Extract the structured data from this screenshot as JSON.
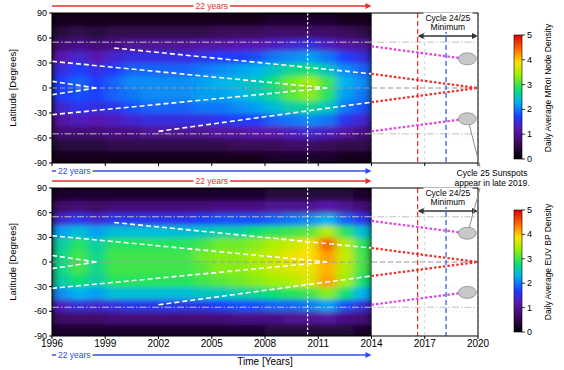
{
  "chart_data": [
    {
      "type": "heatmap",
      "y_label": "Latitude [Degrees]",
      "xlim": [
        1996,
        2020
      ],
      "xticks": [
        1996,
        1999,
        2002,
        2005,
        2008,
        2011,
        2014,
        2017,
        2020
      ],
      "ylim": [
        -90,
        90
      ],
      "yticks": [
        -90,
        -60,
        -30,
        0,
        30,
        60,
        90
      ],
      "tick_labels": "y",
      "grid": true,
      "x_edges": [
        1996,
        1997,
        1998,
        1999,
        2000,
        2001,
        2002,
        2003,
        2004,
        2005,
        2006,
        2007,
        2008,
        2009,
        2010,
        2011,
        2012,
        2013,
        2014
      ],
      "y_edges": [
        -90,
        -75,
        -60,
        -45,
        -30,
        -15,
        0,
        15,
        30,
        45,
        60,
        75,
        90
      ],
      "cells": [
        [
          0.2,
          0.2,
          0.2,
          0.2,
          0.2,
          0.2,
          0.2,
          0.2,
          0.2,
          0.2,
          0.2,
          0.2,
          0.3,
          0.3,
          0.3,
          0.3,
          0.2,
          0.2
        ],
        [
          0.4,
          0.4,
          0.4,
          0.5,
          0.5,
          0.5,
          0.5,
          0.5,
          0.5,
          0.5,
          0.6,
          0.6,
          0.6,
          0.7,
          0.7,
          0.6,
          0.5,
          0.5
        ],
        [
          0.8,
          0.8,
          0.8,
          0.9,
          0.9,
          1.0,
          1.0,
          1.0,
          1.0,
          1.1,
          1.1,
          1.2,
          1.2,
          1.3,
          1.4,
          1.3,
          1.1,
          0.9
        ],
        [
          1.1,
          1.3,
          1.2,
          1.3,
          1.4,
          1.5,
          1.5,
          1.5,
          1.5,
          1.6,
          1.7,
          1.7,
          1.9,
          2.0,
          2.1,
          2.0,
          1.6,
          1.4
        ],
        [
          1.4,
          1.6,
          1.5,
          1.6,
          1.8,
          1.9,
          1.9,
          1.9,
          2.0,
          2.0,
          2.1,
          2.2,
          2.4,
          2.6,
          2.7,
          2.5,
          2.0,
          1.8
        ],
        [
          1.7,
          1.8,
          1.7,
          1.9,
          2.0,
          2.1,
          2.1,
          2.1,
          2.2,
          2.2,
          2.3,
          2.5,
          2.7,
          3.1,
          3.3,
          2.9,
          2.2,
          2.0
        ],
        [
          1.7,
          1.9,
          1.7,
          1.9,
          2.1,
          2.1,
          2.1,
          2.1,
          2.2,
          2.3,
          2.4,
          2.5,
          2.8,
          3.2,
          3.4,
          3.0,
          2.3,
          2.1
        ],
        [
          1.5,
          1.7,
          1.5,
          1.7,
          1.9,
          1.9,
          1.9,
          1.9,
          2.0,
          2.1,
          2.2,
          2.3,
          2.5,
          2.7,
          2.8,
          2.5,
          2.1,
          1.9
        ],
        [
          1.2,
          1.4,
          1.2,
          1.4,
          1.5,
          1.5,
          1.5,
          1.5,
          1.6,
          1.7,
          1.7,
          1.8,
          2.0,
          2.1,
          2.2,
          2.0,
          1.7,
          1.5
        ],
        [
          0.8,
          0.9,
          0.8,
          0.9,
          1.0,
          1.0,
          1.0,
          1.0,
          1.1,
          1.1,
          1.2,
          1.2,
          1.3,
          1.4,
          1.5,
          1.3,
          1.1,
          1.0
        ],
        [
          0.4,
          0.5,
          0.4,
          0.5,
          0.5,
          0.5,
          0.5,
          0.5,
          0.5,
          0.6,
          0.6,
          0.6,
          0.7,
          0.7,
          0.7,
          0.7,
          0.6,
          0.5
        ],
        [
          0.2,
          0.2,
          0.2,
          0.2,
          0.2,
          0.2,
          0.2,
          0.2,
          0.2,
          0.2,
          0.2,
          0.2,
          0.3,
          0.3,
          0.3,
          0.3,
          0.2,
          0.2
        ]
      ],
      "colorbar_lim": [
        0,
        5
      ],
      "colorbar_ticks": [
        0,
        1,
        2,
        3,
        4,
        5
      ],
      "colorbar_label": "Daily Average MRoI Node Density",
      "series": [
        {
          "type": "line",
          "color": "#ffffff",
          "line_style": "dashed",
          "x": [
            1996,
            2011.5
          ],
          "values": [
            32,
            0
          ]
        },
        {
          "type": "line",
          "color": "#ffffff",
          "line_style": "dashed",
          "x": [
            1996,
            2011.5
          ],
          "values": [
            -32,
            0
          ]
        },
        {
          "type": "line",
          "color": "#ffffff",
          "line_style": "dashed",
          "x": [
            1999.5,
            2014
          ],
          "values": [
            48,
            17
          ]
        },
        {
          "type": "line",
          "color": "#ffffff",
          "line_style": "dashed",
          "x": [
            2002,
            2014
          ],
          "values": [
            -52,
            -17
          ]
        },
        {
          "type": "line",
          "color": "#ffffff",
          "line_style": "dashed",
          "x": [
            1996,
            1998.5
          ],
          "values": [
            8,
            0
          ]
        },
        {
          "type": "line",
          "color": "#ffffff",
          "line_style": "dashed",
          "x": [
            1996,
            1998.5
          ],
          "values": [
            -8,
            0
          ]
        },
        {
          "type": "line",
          "color": "#e8302a",
          "line_style": "dotted",
          "x": [
            2014,
            2020
          ],
          "values": [
            17,
            0
          ]
        },
        {
          "type": "line",
          "color": "#e8302a",
          "line_style": "dotted",
          "x": [
            2014,
            2020
          ],
          "values": [
            -17,
            0
          ]
        },
        {
          "type": "line",
          "color": "#e040e0",
          "line_style": "dotted",
          "x": [
            2014,
            2019.3
          ],
          "values": [
            50,
            35
          ]
        },
        {
          "type": "line",
          "color": "#e040e0",
          "line_style": "dotted",
          "x": [
            2014,
            2019.3
          ],
          "values": [
            -52,
            -37
          ]
        }
      ],
      "hlines": [
        {
          "y": 55,
          "color": "#c0c0c0",
          "line_style": "dashdot"
        },
        {
          "y": -55,
          "color": "#c0c0c0",
          "line_style": "dashdot"
        },
        {
          "y": 0,
          "color": "#9a9a9a",
          "line_style": "dashed"
        }
      ],
      "vlines": [
        {
          "x": 2010.4,
          "color": "#ffffff",
          "line_style": "dotted"
        },
        {
          "x": 2016.6,
          "color": "#e8302a",
          "line_style": "dashed"
        },
        {
          "x": 2018.2,
          "color": "#2f4fe8",
          "line_style": "dashed"
        }
      ],
      "ellipses": [
        {
          "x": 2019.4,
          "y": 35
        },
        {
          "x": 2019.4,
          "y": -37
        }
      ],
      "arrow_above": {
        "label": "22 years",
        "x": [
          1996,
          2014
        ],
        "color": "#e8302a"
      },
      "arrow_below": {
        "label": "22 years",
        "x": [
          1996,
          2014
        ],
        "color": "#2f4fe8"
      },
      "minimum_span": {
        "text": [
          "Cycle 24/25",
          "Minimum"
        ],
        "x": [
          2016.6,
          2020
        ]
      }
    },
    {
      "type": "heatmap",
      "y_label": "Latitude [Degrees]",
      "x_label": "Time [Years]",
      "xlim": [
        1996,
        2020
      ],
      "xticks": [
        1996,
        1999,
        2002,
        2005,
        2008,
        2011,
        2014,
        2017,
        2020
      ],
      "ylim": [
        -90,
        90
      ],
      "yticks": [
        -90,
        -60,
        -30,
        0,
        30,
        60,
        90
      ],
      "grid": true,
      "x_edges": [
        1996,
        1997,
        1998,
        1999,
        2000,
        2001,
        2002,
        2003,
        2004,
        2005,
        2006,
        2007,
        2008,
        2009,
        2010,
        2011,
        2012,
        2013,
        2014
      ],
      "y_edges": [
        -90,
        -75,
        -60,
        -45,
        -30,
        -15,
        0,
        15,
        30,
        45,
        60,
        75,
        90
      ],
      "cells": [
        [
          0.3,
          0.3,
          0.3,
          0.3,
          0.3,
          0.3,
          0.3,
          0.3,
          0.3,
          0.3,
          0.3,
          0.3,
          0.4,
          0.4,
          0.4,
          0.4,
          0.4,
          0.3
        ],
        [
          0.7,
          0.7,
          0.7,
          0.8,
          0.8,
          0.8,
          0.8,
          0.8,
          0.8,
          0.8,
          0.9,
          0.9,
          0.9,
          1.0,
          1.0,
          1.1,
          0.9,
          0.8
        ],
        [
          1.3,
          1.5,
          1.4,
          1.5,
          1.6,
          1.6,
          1.6,
          1.6,
          1.6,
          1.7,
          1.8,
          1.8,
          1.9,
          1.9,
          2.0,
          2.2,
          1.8,
          1.5
        ],
        [
          2.1,
          2.3,
          2.2,
          2.4,
          2.4,
          2.4,
          2.4,
          2.4,
          2.5,
          2.5,
          2.6,
          2.7,
          2.8,
          2.9,
          3.0,
          3.3,
          2.8,
          2.3
        ],
        [
          2.6,
          2.8,
          2.6,
          2.9,
          2.9,
          2.9,
          2.9,
          2.9,
          3.0,
          3.1,
          3.2,
          3.3,
          3.4,
          3.5,
          3.7,
          4.2,
          3.4,
          2.8
        ],
        [
          2.7,
          3.0,
          2.7,
          3.0,
          3.0,
          3.0,
          3.0,
          3.0,
          3.1,
          3.3,
          3.3,
          3.4,
          3.6,
          3.7,
          3.8,
          4.1,
          3.5,
          3.0
        ],
        [
          2.7,
          3.0,
          2.7,
          3.0,
          3.0,
          3.0,
          3.0,
          3.0,
          3.2,
          3.3,
          3.3,
          3.5,
          3.6,
          3.8,
          3.9,
          4.2,
          3.6,
          3.0
        ],
        [
          2.6,
          2.9,
          2.6,
          2.9,
          2.9,
          2.9,
          2.9,
          2.9,
          3.0,
          3.2,
          3.2,
          3.3,
          3.5,
          3.6,
          3.8,
          4.5,
          3.5,
          2.9
        ],
        [
          2.2,
          2.4,
          2.2,
          2.4,
          2.4,
          2.4,
          2.4,
          2.4,
          2.5,
          2.6,
          2.6,
          2.8,
          2.9,
          3.0,
          3.1,
          3.5,
          2.9,
          2.4
        ],
        [
          1.4,
          1.6,
          1.4,
          1.6,
          1.6,
          1.6,
          1.6,
          1.6,
          1.7,
          1.8,
          1.8,
          1.8,
          1.9,
          2.0,
          2.1,
          2.3,
          1.9,
          1.6
        ],
        [
          0.7,
          0.8,
          0.7,
          0.8,
          0.8,
          0.8,
          0.8,
          0.8,
          0.8,
          0.9,
          0.9,
          0.9,
          1.0,
          1.0,
          1.0,
          1.2,
          1.0,
          0.8
        ],
        [
          0.3,
          0.3,
          0.3,
          0.3,
          0.3,
          0.3,
          0.3,
          0.3,
          0.3,
          0.3,
          0.3,
          0.3,
          0.4,
          0.4,
          0.4,
          0.4,
          0.4,
          0.3
        ]
      ],
      "colorbar_lim": [
        0,
        5
      ],
      "colorbar_ticks": [
        0,
        1,
        2,
        3,
        4,
        5
      ],
      "colorbar_label": "Daily Average EUV BP Density",
      "series": [
        {
          "type": "line",
          "color": "#ffffff",
          "line_style": "dashed",
          "x": [
            1996,
            2011.5
          ],
          "values": [
            32,
            0
          ]
        },
        {
          "type": "line",
          "color": "#ffffff",
          "line_style": "dashed",
          "x": [
            1996,
            2011.5
          ],
          "values": [
            -32,
            0
          ]
        },
        {
          "type": "line",
          "color": "#ffffff",
          "line_style": "dashed",
          "x": [
            1999.5,
            2014
          ],
          "values": [
            48,
            17
          ]
        },
        {
          "type": "line",
          "color": "#ffffff",
          "line_style": "dashed",
          "x": [
            2002,
            2014
          ],
          "values": [
            -52,
            -17
          ]
        },
        {
          "type": "line",
          "color": "#ffffff",
          "line_style": "dashed",
          "x": [
            1996,
            1998.5
          ],
          "values": [
            8,
            0
          ]
        },
        {
          "type": "line",
          "color": "#ffffff",
          "line_style": "dashed",
          "x": [
            1996,
            1998.5
          ],
          "values": [
            -8,
            0
          ]
        },
        {
          "type": "line",
          "color": "#e8302a",
          "line_style": "dotted",
          "x": [
            2014,
            2020
          ],
          "values": [
            17,
            0
          ]
        },
        {
          "type": "line",
          "color": "#e8302a",
          "line_style": "dotted",
          "x": [
            2014,
            2020
          ],
          "values": [
            -17,
            0
          ]
        },
        {
          "type": "line",
          "color": "#e040e0",
          "line_style": "dotted",
          "x": [
            2014,
            2019.3
          ],
          "values": [
            50,
            35
          ]
        },
        {
          "type": "line",
          "color": "#e040e0",
          "line_style": "dotted",
          "x": [
            2014,
            2019.3
          ],
          "values": [
            -52,
            -37
          ]
        }
      ],
      "hlines": [
        {
          "y": 55,
          "color": "#c0c0c0",
          "line_style": "dashdot"
        },
        {
          "y": -55,
          "color": "#c0c0c0",
          "line_style": "dashdot"
        },
        {
          "y": 0,
          "color": "#9a9a9a",
          "line_style": "dashed"
        }
      ],
      "vlines": [
        {
          "x": 2010.4,
          "color": "#ffffff",
          "line_style": "dotted"
        },
        {
          "x": 2016.6,
          "color": "#e8302a",
          "line_style": "dashed"
        },
        {
          "x": 2018.2,
          "color": "#2f4fe8",
          "line_style": "dashed"
        }
      ],
      "ellipses": [
        {
          "x": 2019.4,
          "y": 35
        },
        {
          "x": 2019.4,
          "y": -37
        }
      ],
      "arrow_above": {
        "label": "22 years",
        "x": [
          1996,
          2014
        ],
        "color": "#e8302a"
      },
      "arrow_below": {
        "label": "22 years",
        "x": [
          1996,
          2014
        ],
        "color": "#2f4fe8"
      },
      "minimum_span": {
        "text": [
          "Cycle 24/25",
          "Minimum"
        ],
        "x": [
          2016.6,
          2020
        ]
      }
    }
  ],
  "note": {
    "text": [
      "Cycle 25 Sunspots",
      "appear in late 2019."
    ]
  }
}
